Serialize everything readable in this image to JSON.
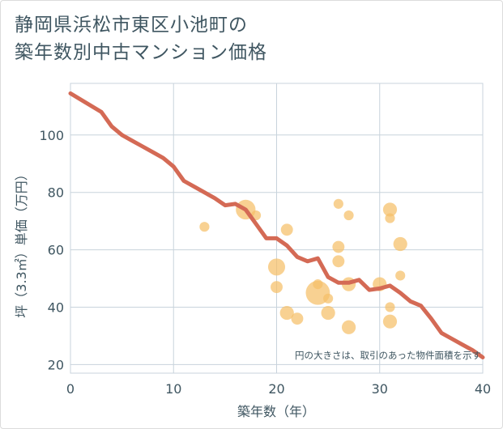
{
  "title_lines": [
    "静岡県浜松市東区小池町の",
    "築年数別中古マンション価格"
  ],
  "chart_data": {
    "type": "scatter",
    "title": "静岡県浜松市東区小池町の築年数別中古マンション価格",
    "xlabel": "築年数（年）",
    "ylabel": "坪（3.3㎡）単価（万円）",
    "xlim": [
      0,
      40
    ],
    "ylim": [
      17,
      118
    ],
    "x_ticks": [
      0,
      10,
      20,
      30,
      40
    ],
    "y_ticks": [
      20,
      40,
      60,
      80,
      100
    ],
    "grid": true,
    "note": "円の大きさは、取引のあった物件面積を示す",
    "colors": {
      "line": "#d46a55",
      "bubble": "#f5bf68",
      "grid": "#c8d3dc",
      "axis_text": "#3f5661"
    },
    "trend_line": {
      "x": [
        0,
        3,
        4,
        5,
        6,
        7,
        8,
        9,
        10,
        11,
        12,
        13,
        14,
        15,
        16,
        17,
        18,
        19,
        20,
        21,
        22,
        23,
        24,
        25,
        26,
        27,
        28,
        29,
        30,
        31,
        32,
        33,
        34,
        35,
        36,
        37,
        38,
        39,
        40
      ],
      "y": [
        114.5,
        108,
        103,
        100,
        98,
        96,
        94,
        92,
        89,
        84,
        82,
        80,
        78,
        75.5,
        76,
        74,
        69,
        64,
        64,
        61.5,
        57.5,
        56,
        57,
        50.5,
        48.5,
        48.5,
        49.5,
        46,
        46.5,
        47.5,
        45,
        42,
        40.5,
        36,
        31,
        29,
        27,
        25,
        22.5
      ]
    },
    "bubbles": [
      {
        "x": 13,
        "y": 68,
        "size": 2
      },
      {
        "x": 17,
        "y": 74,
        "size": 8
      },
      {
        "x": 18,
        "y": 72,
        "size": 2
      },
      {
        "x": 20,
        "y": 54,
        "size": 6
      },
      {
        "x": 20,
        "y": 47,
        "size": 3
      },
      {
        "x": 21,
        "y": 67,
        "size": 3
      },
      {
        "x": 21,
        "y": 38,
        "size": 4
      },
      {
        "x": 22,
        "y": 36,
        "size": 3
      },
      {
        "x": 24,
        "y": 45,
        "size": 12
      },
      {
        "x": 24,
        "y": 48,
        "size": 2
      },
      {
        "x": 25,
        "y": 38,
        "size": 4
      },
      {
        "x": 25,
        "y": 43,
        "size": 2
      },
      {
        "x": 26,
        "y": 76,
        "size": 2
      },
      {
        "x": 26,
        "y": 61,
        "size": 3
      },
      {
        "x": 26,
        "y": 56,
        "size": 3
      },
      {
        "x": 27,
        "y": 72,
        "size": 2
      },
      {
        "x": 27,
        "y": 48,
        "size": 4
      },
      {
        "x": 27,
        "y": 33,
        "size": 4
      },
      {
        "x": 30,
        "y": 48,
        "size": 4
      },
      {
        "x": 31,
        "y": 74,
        "size": 4
      },
      {
        "x": 31,
        "y": 71,
        "size": 2
      },
      {
        "x": 31,
        "y": 40,
        "size": 2
      },
      {
        "x": 31,
        "y": 35,
        "size": 4
      },
      {
        "x": 32,
        "y": 62,
        "size": 4
      },
      {
        "x": 32,
        "y": 51,
        "size": 2
      }
    ]
  }
}
